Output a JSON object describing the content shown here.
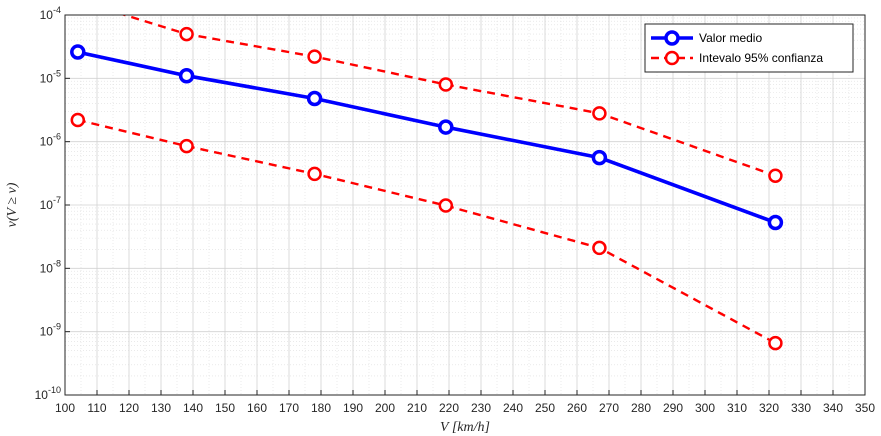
{
  "chart_data": {
    "type": "line",
    "xlabel": "V [km/h]",
    "ylabel": "ν(V ≥ v)",
    "x_scale": "linear",
    "y_scale": "log",
    "xlim": [
      100,
      350
    ],
    "ylim": [
      1e-10,
      0.0001
    ],
    "grid": true,
    "minor_grid": true,
    "legend_position": "top-right",
    "x_ticks": [
      100,
      110,
      120,
      130,
      140,
      150,
      160,
      170,
      180,
      190,
      200,
      210,
      220,
      230,
      240,
      250,
      260,
      270,
      280,
      290,
      300,
      310,
      320,
      330,
      340,
      350
    ],
    "y_ticks": [
      {
        "value": 1e-10,
        "base": "10",
        "exp": "-10"
      },
      {
        "value": 1e-09,
        "base": "10",
        "exp": "-9"
      },
      {
        "value": 1e-08,
        "base": "10",
        "exp": "-8"
      },
      {
        "value": 1e-07,
        "base": "10",
        "exp": "-7"
      },
      {
        "value": 1e-06,
        "base": "10",
        "exp": "-6"
      },
      {
        "value": 1e-05,
        "base": "10",
        "exp": "-5"
      },
      {
        "value": 0.0001,
        "base": "10",
        "exp": "-4"
      }
    ],
    "series": [
      {
        "name": "Valor medio",
        "color": "#0000ff",
        "style": "solid",
        "x": [
          104,
          138,
          178,
          219,
          267,
          322
        ],
        "y": [
          2.6e-05,
          1.1e-05,
          4.8e-06,
          1.7e-06,
          5.6e-07,
          5.3e-08
        ]
      },
      {
        "name": "Intevalo 95% confianza",
        "color": "#ff0000",
        "style": "dashed",
        "x": [
          104,
          138,
          178,
          219,
          267,
          322
        ],
        "y": [
          0.00017,
          5e-05,
          2.2e-05,
          8e-06,
          2.8e-06,
          2.9e-07
        ]
      },
      {
        "name": "",
        "color": "#ff0000",
        "style": "dashed",
        "legend": false,
        "x": [
          104,
          138,
          178,
          219,
          267,
          322
        ],
        "y": [
          2.2e-06,
          8.5e-07,
          3.1e-07,
          9.8e-08,
          2.1e-08,
          6.6e-10
        ]
      }
    ]
  }
}
